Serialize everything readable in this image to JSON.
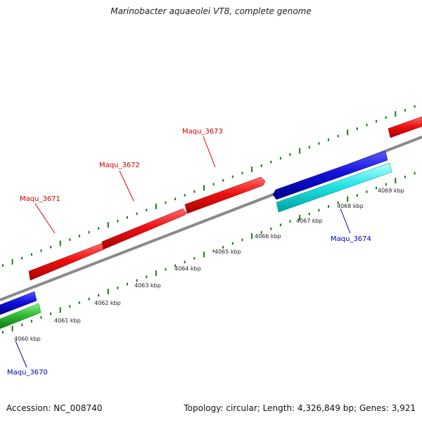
{
  "title": "Marinobacter aquaeolei VT8, complete genome",
  "accession": "Accession: NC_008740",
  "summary": "Topology: circular; Length: 4,326,849 bp; Genes: 3,921",
  "colors": {
    "backbone": "#888888",
    "tick": "#1a7a1a",
    "forward_gene": "#ee1111",
    "reverse_gene_blue": "#1111dd",
    "reverse_gene_cyan": "#22e5e5",
    "reverse_gene_green": "#33bb33",
    "forward_label": "#cc0000",
    "reverse_label": "#0000aa"
  },
  "scale": {
    "unit": "kbp",
    "labels": [
      "4060 kbp",
      "4061 kbp",
      "4062 kbp",
      "4063 kbp",
      "4064 kbp",
      "4065 kbp",
      "4066 kbp",
      "4067 kbp",
      "4068 kbp",
      "4069 kbp"
    ]
  },
  "genes": [
    {
      "name": "Maqu_3670",
      "strand": "-",
      "track": "blue-and-green"
    },
    {
      "name": "Maqu_3671",
      "strand": "+"
    },
    {
      "name": "Maqu_3672",
      "strand": "+"
    },
    {
      "name": "Maqu_3673",
      "strand": "+"
    },
    {
      "name": "Maqu_3674",
      "strand": "-",
      "track": "blue-and-cyan"
    }
  ]
}
